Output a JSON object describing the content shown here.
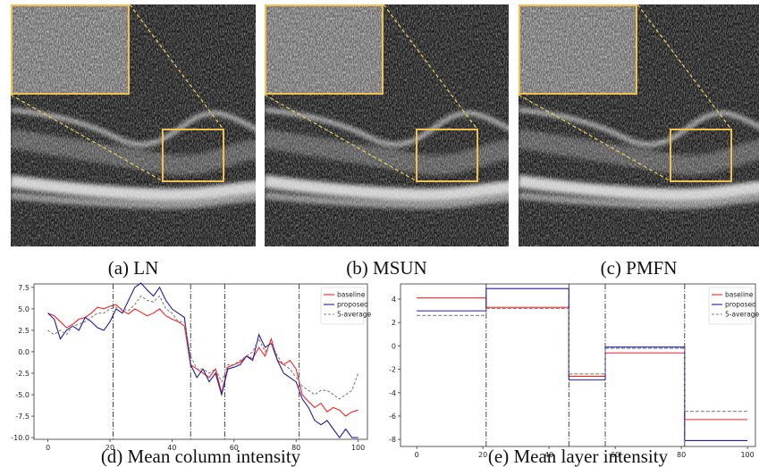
{
  "images": {
    "panels": [
      {
        "caption": "(a) LN"
      },
      {
        "caption": "(b) MSUN"
      },
      {
        "caption": "(c) PMFN"
      }
    ]
  },
  "chart_data": [
    {
      "type": "line",
      "caption": "(d) Mean column intensity",
      "x": [
        0,
        2,
        4,
        6,
        8,
        10,
        12,
        14,
        16,
        18,
        20,
        22,
        24,
        26,
        28,
        30,
        32,
        34,
        36,
        38,
        40,
        42,
        44,
        46,
        48,
        50,
        52,
        54,
        56,
        58,
        60,
        62,
        64,
        66,
        68,
        70,
        72,
        74,
        76,
        78,
        80,
        82,
        84,
        86,
        88,
        90,
        92,
        94,
        96,
        98,
        100
      ],
      "series": [
        {
          "name": "baseline",
          "color": "#ff2020",
          "linestyle": "solid",
          "values": [
            4.5,
            4.2,
            3.5,
            2.8,
            3.2,
            3.8,
            4.0,
            4.5,
            5.2,
            5.0,
            5.3,
            5.5,
            4.8,
            4.4,
            5.0,
            4.6,
            4.2,
            4.5,
            5.0,
            4.2,
            3.8,
            3.5,
            3.0,
            -1.5,
            -2.0,
            -2.5,
            -3.0,
            -2.0,
            -4.8,
            -1.8,
            -1.5,
            -1.2,
            -0.5,
            -0.8,
            0.5,
            -0.5,
            1.5,
            -1.0,
            -1.5,
            -1.0,
            -2.0,
            -5.0,
            -5.8,
            -6.5,
            -6.0,
            -7.0,
            -6.5,
            -6.8,
            -7.5,
            -7.0,
            -6.8
          ]
        },
        {
          "name": "proposed",
          "color": "#1f1f9f",
          "linestyle": "solid",
          "values": [
            4.5,
            3.8,
            1.5,
            2.5,
            3.0,
            2.5,
            4.0,
            3.5,
            2.8,
            2.5,
            3.5,
            5.0,
            4.5,
            6.0,
            7.5,
            8.0,
            7.2,
            6.5,
            7.5,
            6.0,
            5.0,
            4.5,
            4.0,
            -1.5,
            -3.0,
            -2.0,
            -3.5,
            -2.5,
            -5.0,
            -2.0,
            -1.8,
            -1.5,
            -0.5,
            -1.0,
            2.0,
            0.5,
            1.0,
            -1.0,
            -2.5,
            -3.0,
            -3.5,
            -5.5,
            -6.5,
            -8.0,
            -8.5,
            -8.0,
            -9.0,
            -10.0,
            -9.0,
            -10.0,
            -10.0
          ]
        },
        {
          "name": "5-average",
          "color": "#808080",
          "linestyle": "dashed",
          "values": [
            2.5,
            2.0,
            2.5,
            2.0,
            3.0,
            3.2,
            3.5,
            4.0,
            4.5,
            4.5,
            5.0,
            5.2,
            5.0,
            4.8,
            5.5,
            6.5,
            6.0,
            5.8,
            6.5,
            5.0,
            4.5,
            3.5,
            3.5,
            -0.5,
            -2.0,
            -2.0,
            -2.5,
            -2.0,
            -3.5,
            -1.5,
            -1.5,
            -1.0,
            -0.5,
            0.0,
            1.5,
            0.0,
            1.0,
            -0.5,
            -1.5,
            -2.0,
            -3.0,
            -4.0,
            -4.5,
            -5.0,
            -4.5,
            -4.5,
            -5.0,
            -5.5,
            -5.0,
            -4.5,
            -2.5
          ]
        }
      ],
      "boundaries": [
        21,
        46,
        57,
        81
      ],
      "xlim": [
        -4.5,
        103
      ],
      "ylim": [
        -10.2,
        7.9
      ],
      "xticks": [
        0,
        20,
        40,
        60,
        80,
        100
      ],
      "yticks": [
        7.5,
        {
          "value": 5,
          "label": "5.0"
        },
        2.5,
        {
          "value": 0,
          "label": "0.0"
        },
        -2.5,
        {
          "value": -5,
          "label": "-5.0"
        },
        -7.5,
        {
          "value": -10,
          "label": "-10.0"
        }
      ],
      "legend": "upper right"
    },
    {
      "type": "step",
      "caption": "(e) Mean layer intensity",
      "edges": [
        0,
        21,
        46,
        57,
        81,
        100
      ],
      "series": [
        {
          "name": "baseline",
          "color": "#ff2020",
          "linestyle": "solid",
          "values": [
            4.1,
            3.3,
            -2.6,
            -0.6,
            -6.3
          ]
        },
        {
          "name": "proposed",
          "color": "#1f1f9f",
          "linestyle": "solid",
          "values": [
            3.0,
            4.9,
            -2.9,
            -0.1,
            -8.1
          ]
        },
        {
          "name": "5-average",
          "color": "#808080",
          "linestyle": "dashed",
          "values": [
            2.6,
            3.2,
            -2.4,
            -0.2,
            -5.6
          ]
        }
      ],
      "boundaries": [
        21,
        46,
        57,
        81
      ],
      "xlim": [
        -4.9,
        102.4
      ],
      "ylim": [
        -8.6,
        5.3
      ],
      "xticks": [
        0,
        20,
        40,
        60,
        80,
        100
      ],
      "yticks": [
        4,
        2,
        0,
        -2,
        -4,
        -6,
        -8
      ],
      "legend": "upper right"
    }
  ]
}
